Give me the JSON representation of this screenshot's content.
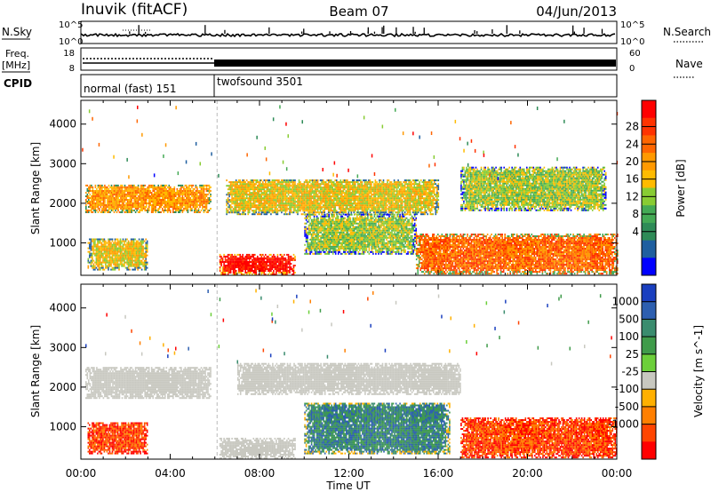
{
  "header": {
    "station": "Inuvik (fitACF)",
    "beam": "Beam 07",
    "date": "04/Jun/2013"
  },
  "left_labels": {
    "nsky": "N.Sky",
    "freq_top": "Freq.",
    "freq_unit": "[MHz]",
    "cpid": "CPID"
  },
  "right_labels": {
    "nsearch": "N.Search",
    "nave": "Nave"
  },
  "noise_axis": {
    "top": "10^5",
    "bottom": "10^0"
  },
  "freq_axis": {
    "ticks": [
      "18",
      "8"
    ]
  },
  "nave_axis": {
    "ticks": [
      "60",
      "0"
    ]
  },
  "cpid_segments": [
    {
      "label": "normal (fast) 151",
      "start_hour": 0,
      "end_hour": 6.1
    },
    {
      "label": "twofsound 3501",
      "start_hour": 6.1,
      "end_hour": 24
    }
  ],
  "time_axis": {
    "label": "Time UT",
    "ticks": [
      "00:00",
      "04:00",
      "08:00",
      "12:00",
      "16:00",
      "20:00",
      "00:00"
    ]
  },
  "colors": {
    "background": "#ffffff",
    "axis": "#000000",
    "ground_scatter": "#c8c8c0"
  },
  "chart_data": [
    {
      "type": "heatmap",
      "title": "",
      "xlabel": "",
      "ylabel": "Slant Range [km]",
      "xlim": [
        0,
        24
      ],
      "ylim": [
        180,
        4600
      ],
      "yticks": [
        1000,
        2000,
        3000,
        4000
      ],
      "colorbar": {
        "label": "Power [dB]",
        "ticks": [
          "28",
          "24",
          "20",
          "16",
          "12",
          "8",
          "4"
        ],
        "colors": [
          "#ff0000",
          "#ff3300",
          "#ff6600",
          "#ff9900",
          "#ffbb00",
          "#88cc33",
          "#44aa55",
          "#2e8b57",
          "#1f5fa0",
          "#0000ff"
        ]
      },
      "regions": [
        {
          "t0": 0.2,
          "t1": 5.8,
          "r0": 1750,
          "r1": 2450,
          "level": 22
        },
        {
          "t0": 0.3,
          "t1": 3.0,
          "r0": 300,
          "r1": 1100,
          "level": 18
        },
        {
          "t0": 6.2,
          "t1": 9.6,
          "r0": 180,
          "r1": 700,
          "level": 29
        },
        {
          "t0": 6.5,
          "t1": 16.0,
          "r0": 1700,
          "r1": 2600,
          "level": 18
        },
        {
          "t0": 10.0,
          "t1": 15.0,
          "r0": 700,
          "r1": 1700,
          "level": 16
        },
        {
          "t0": 15.0,
          "t1": 24.0,
          "r0": 200,
          "r1": 1200,
          "level": 24
        },
        {
          "t0": 17.0,
          "t1": 23.5,
          "r0": 1800,
          "r1": 2900,
          "level": 14
        }
      ]
    },
    {
      "type": "heatmap",
      "title": "",
      "xlabel": "Time UT",
      "ylabel": "Slant Range [km]",
      "xlim": [
        0,
        24
      ],
      "ylim": [
        180,
        4600
      ],
      "yticks": [
        1000,
        2000,
        3000,
        4000
      ],
      "colorbar": {
        "label": "Velocity [m s^-1]",
        "ticks": [
          "1000",
          "500",
          "100",
          "25",
          "-25",
          "-100",
          "-500",
          "-1000"
        ],
        "colors": [
          "#1a3fbf",
          "#2d5fb0",
          "#3a8c6e",
          "#3f9b4a",
          "#6ccf3a",
          "#c8c8c0",
          "#ffb000",
          "#ff7f00",
          "#ff4500",
          "#ff0000"
        ]
      },
      "regions": [
        {
          "t0": 0.2,
          "t1": 5.8,
          "r0": 1700,
          "r1": 2500,
          "velocity": 0,
          "ground_scatter": true
        },
        {
          "t0": 0.3,
          "t1": 3.0,
          "r0": 300,
          "r1": 1100,
          "velocity": -300
        },
        {
          "t0": 6.2,
          "t1": 9.6,
          "r0": 180,
          "r1": 700,
          "velocity": 0,
          "ground_scatter": true
        },
        {
          "t0": 7.0,
          "t1": 17.0,
          "r0": 1800,
          "r1": 2600,
          "velocity": 0,
          "ground_scatter": true
        },
        {
          "t0": 10.0,
          "t1": 16.5,
          "r0": 300,
          "r1": 1600,
          "velocity": 150
        },
        {
          "t0": 17.0,
          "t1": 24.0,
          "r0": 200,
          "r1": 1200,
          "velocity": -400
        }
      ]
    }
  ]
}
